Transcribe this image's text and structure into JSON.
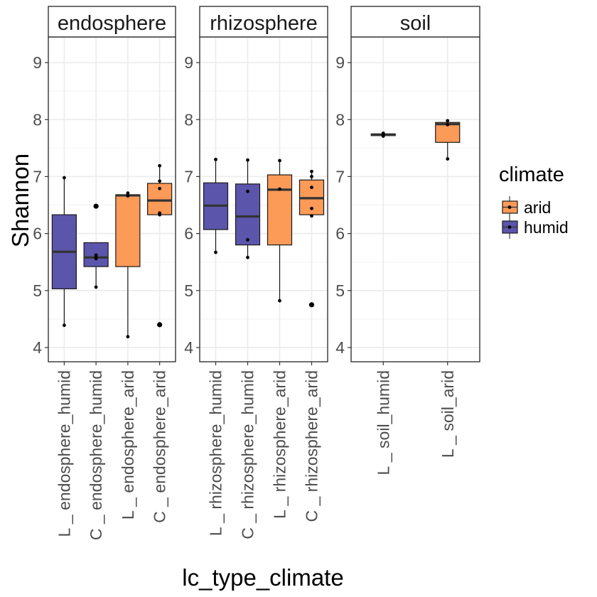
{
  "chart_data": {
    "type": "boxplot",
    "xlabel": "lc_type_climate",
    "ylabel": "Shannon",
    "ylim": [
      3.75,
      9.45
    ],
    "y_ticks": [
      "4",
      "5",
      "6",
      "7",
      "8",
      "9"
    ],
    "grid": true,
    "legend": {
      "title": "climate",
      "position": "right",
      "entries": [
        {
          "label": "arid",
          "color": "#FC9A57"
        },
        {
          "label": "humid",
          "color": "#5B55AB"
        }
      ]
    },
    "panels": [
      {
        "strip": "endosphere",
        "categories": [
          {
            "label": "L _ endosphere_humid",
            "climate": "humid",
            "q1": 5.03,
            "median": 5.68,
            "q3": 6.33,
            "whisker_low": 4.39,
            "whisker_high": 6.98,
            "points": [
              4.39,
              6.98
            ],
            "outliers": []
          },
          {
            "label": "C _ endosphere_humid",
            "climate": "humid",
            "q1": 5.42,
            "median": 5.58,
            "q3": 5.84,
            "whisker_low": 5.06,
            "whisker_high": 5.84,
            "points": [
              5.06,
              5.56,
              5.58,
              5.62
            ],
            "outliers": [
              6.48
            ]
          },
          {
            "label": "L _ endosphere_arid",
            "climate": "arid",
            "q1": 5.42,
            "median": 6.67,
            "q3": 6.68,
            "whisker_low": 4.19,
            "whisker_high": 6.71,
            "points": [
              4.19,
              6.66,
              6.71
            ],
            "outliers": []
          },
          {
            "label": "C _ endosphere_arid",
            "climate": "arid",
            "q1": 6.33,
            "median": 6.58,
            "q3": 6.88,
            "whisker_low": 6.33,
            "whisker_high": 7.19,
            "points": [
              6.33,
              6.36,
              6.79,
              6.92,
              7.19
            ],
            "outliers": [
              4.4
            ]
          }
        ]
      },
      {
        "strip": "rhizosphere",
        "categories": [
          {
            "label": "L _ rhizosphere_humid",
            "climate": "humid",
            "q1": 6.07,
            "median": 6.49,
            "q3": 6.89,
            "whisker_low": 5.67,
            "whisker_high": 7.3,
            "points": [
              5.67,
              7.3
            ],
            "outliers": []
          },
          {
            "label": "C _ rhizosphere_humid",
            "climate": "humid",
            "q1": 5.8,
            "median": 6.3,
            "q3": 6.87,
            "whisker_low": 5.58,
            "whisker_high": 7.29,
            "points": [
              5.58,
              5.89,
              6.74,
              7.29
            ],
            "outliers": []
          },
          {
            "label": "L _ rhizosphere_arid",
            "climate": "arid",
            "q1": 5.8,
            "median": 6.77,
            "q3": 7.03,
            "whisker_low": 4.82,
            "whisker_high": 7.28,
            "points": [
              4.82,
              6.78,
              7.28
            ],
            "outliers": []
          },
          {
            "label": "C _ rhizosphere_arid",
            "climate": "arid",
            "q1": 6.33,
            "median": 6.62,
            "q3": 6.94,
            "whisker_low": 6.33,
            "whisker_high": 7.09,
            "points": [
              6.31,
              6.44,
              6.81,
              7.0,
              7.09
            ],
            "outliers": [
              4.75
            ]
          }
        ]
      },
      {
        "strip": "soil",
        "categories": [
          {
            "label": "L _ soil_humid",
            "climate": "humid",
            "q1": 7.72,
            "median": 7.73,
            "q3": 7.75,
            "whisker_low": 7.71,
            "whisker_high": 7.76,
            "points": [
              7.71,
              7.73,
              7.76
            ],
            "outliers": []
          },
          {
            "label": "L _ soil_arid",
            "climate": "arid",
            "q1": 7.6,
            "median": 7.92,
            "q3": 7.95,
            "whisker_low": 7.31,
            "whisker_high": 7.98,
            "points": [
              7.31,
              7.91,
              7.98
            ],
            "outliers": []
          }
        ]
      }
    ]
  }
}
